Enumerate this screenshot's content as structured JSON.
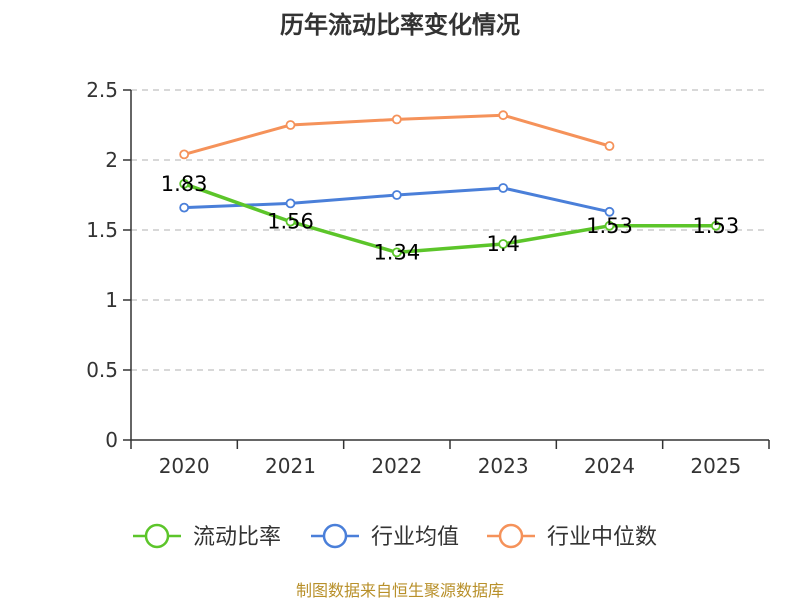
{
  "chart_data": {
    "type": "line",
    "title": "历年流动比率变化情况",
    "categories": [
      "2020",
      "2021",
      "2022",
      "2023",
      "2024",
      "2025"
    ],
    "ylim": [
      0,
      2.5
    ],
    "yticks": [
      "0",
      "0.5",
      "1",
      "1.5",
      "2",
      "2.5"
    ],
    "grid": true,
    "legend": "bottom",
    "series": [
      {
        "name": "流动比率",
        "color": "#5cc52a",
        "values": [
          1.83,
          1.56,
          1.34,
          1.4,
          1.53,
          1.53
        ],
        "labels": [
          "1.83",
          "1.56",
          "1.34",
          "1.4",
          "1.53",
          "1.53"
        ]
      },
      {
        "name": "行业均值",
        "color": "#4a7fd9",
        "values": [
          1.66,
          1.69,
          1.75,
          1.8,
          1.63,
          null
        ]
      },
      {
        "name": "行业中位数",
        "color": "#f5925a",
        "values": [
          2.04,
          2.25,
          2.29,
          2.32,
          2.1,
          null
        ]
      }
    ]
  },
  "source": "制图数据来自恒生聚源数据库"
}
